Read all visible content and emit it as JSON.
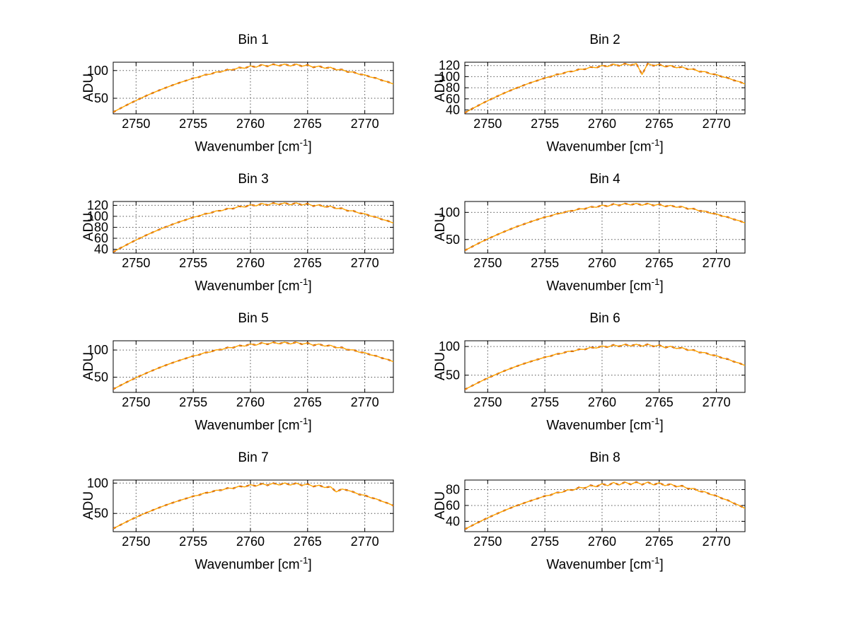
{
  "page": {
    "background": "#ffffff"
  },
  "colors": {
    "trace": "#FFA500",
    "trace_under": "#8B0000",
    "axis": "#000000",
    "grid": "#555555"
  },
  "axes_shared": {
    "ylabel": "ADU",
    "xlabel_base": "Wavenumber [cm",
    "xlabel_sup": "-1",
    "xlabel_end": "]",
    "x_start": 2748,
    "x_step": 0.5,
    "xlim": [
      2748,
      2772.5
    ],
    "xticks": [
      2750,
      2755,
      2760,
      2765,
      2770
    ]
  },
  "chart_data": [
    {
      "type": "line",
      "title": "Bin 1",
      "yticks": [
        50,
        100
      ],
      "ylim": [
        22,
        115
      ],
      "values": [
        25,
        30.5,
        35.9,
        41.1,
        46.1,
        50.9,
        55.6,
        60,
        64.3,
        68.3,
        72.2,
        75.9,
        79.4,
        82.7,
        86.3,
        88.2,
        92.3,
        93.4,
        97.4,
        97.8,
        101.7,
        101.3,
        105.5,
        104.2,
        108.4,
        106.1,
        110.5,
        107.6,
        111.4,
        108.5,
        111.6,
        108.1,
        111.6,
        107.7,
        110.2,
        105.7,
        108.1,
        104.2,
        105.8,
        101.3,
        101.9,
        97.4,
        97.4,
        93.2,
        92.3,
        88.1,
        86.3,
        82.2,
        79.7,
        75.6
      ]
    },
    {
      "type": "line",
      "title": "Bin 2",
      "yticks": [
        40,
        60,
        80,
        100,
        120
      ],
      "ylim": [
        33,
        126
      ],
      "values": [
        34.9,
        40.6,
        46.1,
        51.5,
        56.6,
        61.5,
        66.3,
        70.8,
        75.2,
        79.3,
        83.3,
        87.1,
        90.7,
        94,
        97.7,
        99.7,
        103.8,
        105.1,
        109.1,
        109.5,
        113.5,
        113.2,
        117.3,
        116.1,
        120.3,
        118.1,
        122.5,
        119.5,
        123.4,
        120.5,
        123.6,
        104,
        123.6,
        119.6,
        122.2,
        117.7,
        120,
        116.1,
        117.6,
        113.2,
        113.7,
        109.1,
        109.1,
        104.9,
        103.8,
        99.6,
        97.7,
        93.5,
        91,
        86.8
      ]
    },
    {
      "type": "line",
      "title": "Bin 3",
      "yticks": [
        40,
        60,
        80,
        100,
        120
      ],
      "ylim": [
        33,
        127
      ],
      "values": [
        35,
        40.7,
        46.3,
        51.7,
        56.9,
        61.9,
        66.7,
        71.3,
        75.7,
        79.9,
        83.9,
        87.7,
        91.3,
        94.7,
        98.4,
        100.4,
        104.5,
        105.9,
        109.9,
        110.3,
        114.3,
        114,
        118.2,
        117,
        121.2,
        119,
        123.4,
        120.4,
        124.3,
        121.4,
        124.5,
        121,
        124.5,
        120.5,
        123.1,
        118.6,
        120.9,
        117,
        118.5,
        114.1,
        114.6,
        110,
        110,
        105.8,
        104.7,
        100.5,
        98.6,
        94.4,
        91.9,
        87.7
      ]
    },
    {
      "type": "line",
      "title": "Bin 4",
      "yticks": [
        50,
        100
      ],
      "ylim": [
        25,
        120
      ],
      "values": [
        30,
        35.4,
        40.9,
        46.2,
        51.1,
        55.8,
        60.5,
        65,
        69.2,
        73.4,
        77.1,
        80.8,
        84.5,
        87.8,
        91.2,
        93.3,
        97.2,
        98.5,
        102.3,
        102.9,
        106.6,
        106.4,
        110.4,
        109.3,
        113.3,
        111.2,
        115.4,
        112.7,
        116.3,
        113.6,
        116.5,
        113.1,
        116.4,
        112.6,
        115.1,
        110.8,
        113,
        109.3,
        110.7,
        106.4,
        106.8,
        102.5,
        102.3,
        98.2,
        97.2,
        93.1,
        91.2,
        87.2,
        84.6,
        80.6
      ]
    },
    {
      "type": "line",
      "title": "Bin 5",
      "yticks": [
        50,
        100
      ],
      "ylim": [
        22,
        117
      ],
      "values": [
        28,
        33.4,
        38.8,
        44,
        49,
        53.8,
        58.5,
        62.9,
        67.2,
        71.2,
        75.1,
        78.8,
        82.3,
        85.6,
        89.2,
        91.1,
        95.2,
        96.3,
        100.3,
        100.7,
        104.6,
        104.2,
        108.4,
        107.1,
        111.3,
        109,
        113.4,
        110.5,
        114.3,
        111.4,
        114.5,
        111,
        114.5,
        110.6,
        113.1,
        108.6,
        111,
        107.1,
        108.7,
        104.2,
        104.8,
        100.3,
        100.3,
        96.1,
        95.2,
        91,
        89.2,
        85.1,
        82.6,
        78.5
      ]
    },
    {
      "type": "line",
      "title": "Bin 6",
      "yticks": [
        50,
        100
      ],
      "ylim": [
        20,
        110
      ],
      "values": [
        25,
        30.2,
        35.3,
        40.2,
        44.9,
        49.4,
        53.7,
        57.8,
        61.7,
        65.4,
        68.9,
        72.2,
        75.3,
        78.2,
        81.4,
        83.2,
        86.9,
        87.9,
        91.5,
        91.7,
        95.2,
        94.8,
        98.5,
        97.3,
        101,
        98.8,
        102.9,
        100.2,
        103.8,
        100.9,
        104,
        100.5,
        103.9,
        100.1,
        102.5,
        98.1,
        100.4,
        96.5,
        98,
        93.6,
        94,
        89.6,
        89.4,
        85.2,
        84.1,
        79.9,
        77.9,
        73.8,
        71,
        66.8
      ]
    },
    {
      "type": "line",
      "title": "Bin 7",
      "yticks": [
        50,
        100
      ],
      "ylim": [
        20,
        105
      ],
      "values": [
        25,
        29.9,
        34.7,
        39.3,
        43.7,
        47.9,
        51.9,
        55.8,
        59.5,
        63,
        66.3,
        69.5,
        72.5,
        75.3,
        78.5,
        80.2,
        83.8,
        84.7,
        88.2,
        88.3,
        91.8,
        91.3,
        94.9,
        93.7,
        97.3,
        95.1,
        99.1,
        96.4,
        99.9,
        97,
        100.1,
        96.7,
        100,
        96.2,
        98.6,
        94.3,
        96.5,
        92.6,
        94,
        85.5,
        90.2,
        88.1,
        85.4,
        81.3,
        80.1,
        76,
        73.9,
        69.9,
        66.9,
        62.8
      ]
    },
    {
      "type": "line",
      "title": "Bin 8",
      "yticks": [
        40,
        60,
        80
      ],
      "ylim": [
        27,
        92
      ],
      "values": [
        30,
        33.8,
        37.4,
        41,
        44.4,
        47.7,
        50.8,
        53.9,
        56.8,
        59.6,
        62.2,
        64.7,
        67.1,
        69.4,
        72,
        73,
        76.2,
        76.5,
        79.7,
        79.4,
        82.8,
        81.8,
        85.4,
        83.6,
        87.5,
        84.9,
        89,
        85.8,
        89.5,
        86.5,
        89.6,
        86.2,
        89.4,
        85.9,
        88.7,
        84.9,
        87.1,
        83.6,
        84.9,
        81.1,
        81.4,
        77.7,
        77.2,
        73.7,
        72.3,
        68.8,
        66.5,
        62.9,
        60,
        56.3
      ]
    }
  ]
}
